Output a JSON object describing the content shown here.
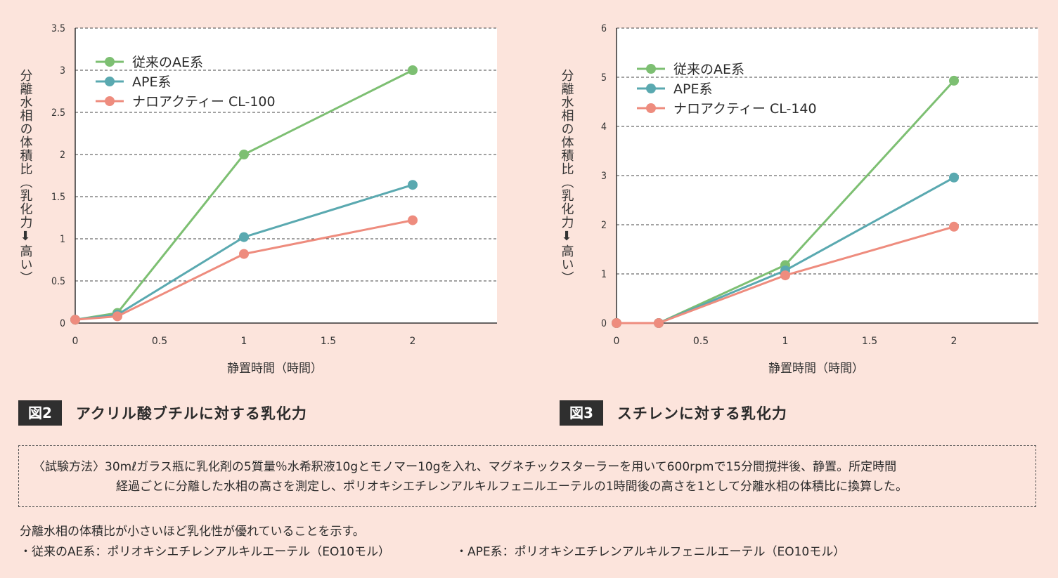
{
  "chart_data": [
    {
      "type": "line",
      "id": "fig2",
      "ylabel": "分離水相の体積比（乳化力⬇高い）",
      "xlabel": "静置時間（時間）",
      "xlim": [
        0,
        2.5
      ],
      "ylim": [
        0,
        3.5
      ],
      "xticks": [
        0,
        0.5,
        1,
        1.5,
        2
      ],
      "xtick_labels": [
        "0",
        "0.5",
        "1",
        "1.5",
        "2"
      ],
      "yticks": [
        0,
        0.5,
        1,
        1.5,
        2,
        2.5,
        3,
        3.5
      ],
      "ytick_labels": [
        "0",
        "0.5",
        "1",
        "1.5",
        "2",
        "2.5",
        "3",
        "3.5"
      ],
      "grid": "horizontal dashed",
      "legend_position": "top-left",
      "series": [
        {
          "name": "従来のAE系",
          "color": "#7dbf72",
          "x": [
            0,
            0.25,
            1,
            2
          ],
          "values": [
            0.04,
            0.12,
            2.0,
            3.0
          ]
        },
        {
          "name": "APE系",
          "color": "#5aa9b0",
          "x": [
            0,
            0.25,
            1,
            2
          ],
          "values": [
            0.04,
            0.1,
            1.02,
            1.64
          ]
        },
        {
          "name": "ナロアクティー CL-100",
          "color": "#ee8c7e",
          "x": [
            0,
            0.25,
            1,
            2
          ],
          "values": [
            0.04,
            0.08,
            0.82,
            1.22
          ]
        }
      ]
    },
    {
      "type": "line",
      "id": "fig3",
      "ylabel": "分離水相の体積比（乳化力⬇高い）",
      "xlabel": "静置時間（時間）",
      "xlim": [
        0,
        2.5
      ],
      "ylim": [
        0,
        6
      ],
      "xticks": [
        0,
        0.5,
        1,
        1.5,
        2
      ],
      "xtick_labels": [
        "0",
        "0.5",
        "1",
        "1.5",
        "2"
      ],
      "yticks": [
        0,
        1,
        2,
        3,
        4,
        5,
        6
      ],
      "ytick_labels": [
        "0",
        "1",
        "2",
        "3",
        "4",
        "5",
        "6"
      ],
      "grid": "horizontal dashed",
      "legend_position": "top-left",
      "series": [
        {
          "name": "従来のAE系",
          "color": "#7dbf72",
          "x": [
            0,
            0.25,
            1,
            2
          ],
          "values": [
            0,
            0,
            1.18,
            4.93
          ]
        },
        {
          "name": "APE系",
          "color": "#5aa9b0",
          "x": [
            0,
            0.25,
            1,
            2
          ],
          "values": [
            0,
            0,
            1.07,
            2.96
          ]
        },
        {
          "name": "ナロアクティー CL-140",
          "color": "#ee8c7e",
          "x": [
            0,
            0.25,
            1,
            2
          ],
          "values": [
            0,
            0,
            0.97,
            1.96
          ]
        }
      ]
    }
  ],
  "figures": {
    "fig2": {
      "label": "図2",
      "title": "アクリル酸ブチルに対する乳化力"
    },
    "fig3": {
      "label": "図3",
      "title": "スチレンに対する乳化力"
    }
  },
  "method": {
    "line1": "〈試験方法〉30mℓガラス瓶に乳化剤の5質量％水希釈液10gとモノマー10gを入れ、マグネチックスターラーを用いて600rpmで15分間撹拌後、静置。所定時間",
    "line2": "経過ごとに分離した水相の高さを測定し、ポリオキシエチレンアルキルフェニルエーテルの1時間後の高さを1として分離水相の体積比に換算した。"
  },
  "notes": {
    "summary": "分離水相の体積比が小さいほど乳化性が優れていることを示す。",
    "ae": "・従来のAE系：ポリオキシエチレンアルキルエーテル（EO10モル）",
    "ape": "・APE系：ポリオキシエチレンアルキルフェニルエーテル（EO10モル）"
  }
}
